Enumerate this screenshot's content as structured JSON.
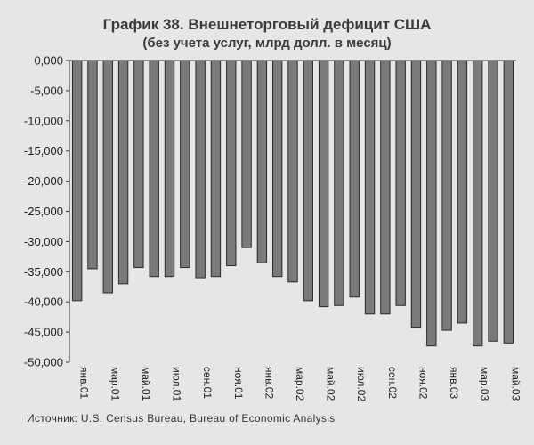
{
  "page": {
    "title": "График 38. Внешнеторговый дефицит США",
    "subtitle": "(без учета услуг, млрд долл. в месяц)",
    "source": "Источник: U.S. Census Bureau, Bureau of Economic Analysis"
  },
  "chart_data": {
    "type": "bar",
    "title": "График 38. Внешнеторговый дефицит США",
    "subtitle": "(без учета услуг, млрд долл. в месяц)",
    "xlabel": "",
    "ylabel": "",
    "ylim": [
      -50000,
      0
    ],
    "yticks": [
      0,
      -5000,
      -10000,
      -15000,
      -20000,
      -25000,
      -30000,
      -35000,
      -40000,
      -45000,
      -50000
    ],
    "ytick_labels": [
      "0,000",
      "-5,000",
      "-10,000",
      "-15,000",
      "-20,000",
      "-25,000",
      "-30,000",
      "-35,000",
      "-40,000",
      "-45,000",
      "-50,000"
    ],
    "categories": [
      "янв.01",
      "фев.01",
      "мар.01",
      "апр.01",
      "май.01",
      "июн.01",
      "июл.01",
      "авг.01",
      "сен.01",
      "окт.01",
      "ноя.01",
      "дек.01",
      "янв.02",
      "фев.02",
      "мар.02",
      "апр.02",
      "май.02",
      "июн.02",
      "июл.02",
      "авг.02",
      "сен.02",
      "окт.02",
      "ноя.02",
      "дек.02",
      "янв.03",
      "фев.03",
      "мар.03",
      "апр.03",
      "май.03"
    ],
    "shown_xtick_labels": [
      "янв.01",
      "мар.01",
      "май.01",
      "июл.01",
      "сен.01",
      "ноя.01",
      "янв.02",
      "мар.02",
      "май.02",
      "июл.02",
      "сен.02",
      "ноя.02",
      "янв.03",
      "мар.03",
      "май.03"
    ],
    "values": [
      -39800,
      -34500,
      -38500,
      -37000,
      -34300,
      -35800,
      -35800,
      -34300,
      -36000,
      -35800,
      -34000,
      -31000,
      -33500,
      -35800,
      -36700,
      -39800,
      -40800,
      -40600,
      -39200,
      -42000,
      -42000,
      -40600,
      -44200,
      -47300,
      -44700,
      -43500,
      -47300,
      -46500,
      -46800
    ],
    "grid": false,
    "legend": "none",
    "colors": {
      "bar": "#7a7a7a",
      "bar_edge": "#2a2a2a",
      "axis": "#333333",
      "background": "#e6e6e6"
    }
  }
}
